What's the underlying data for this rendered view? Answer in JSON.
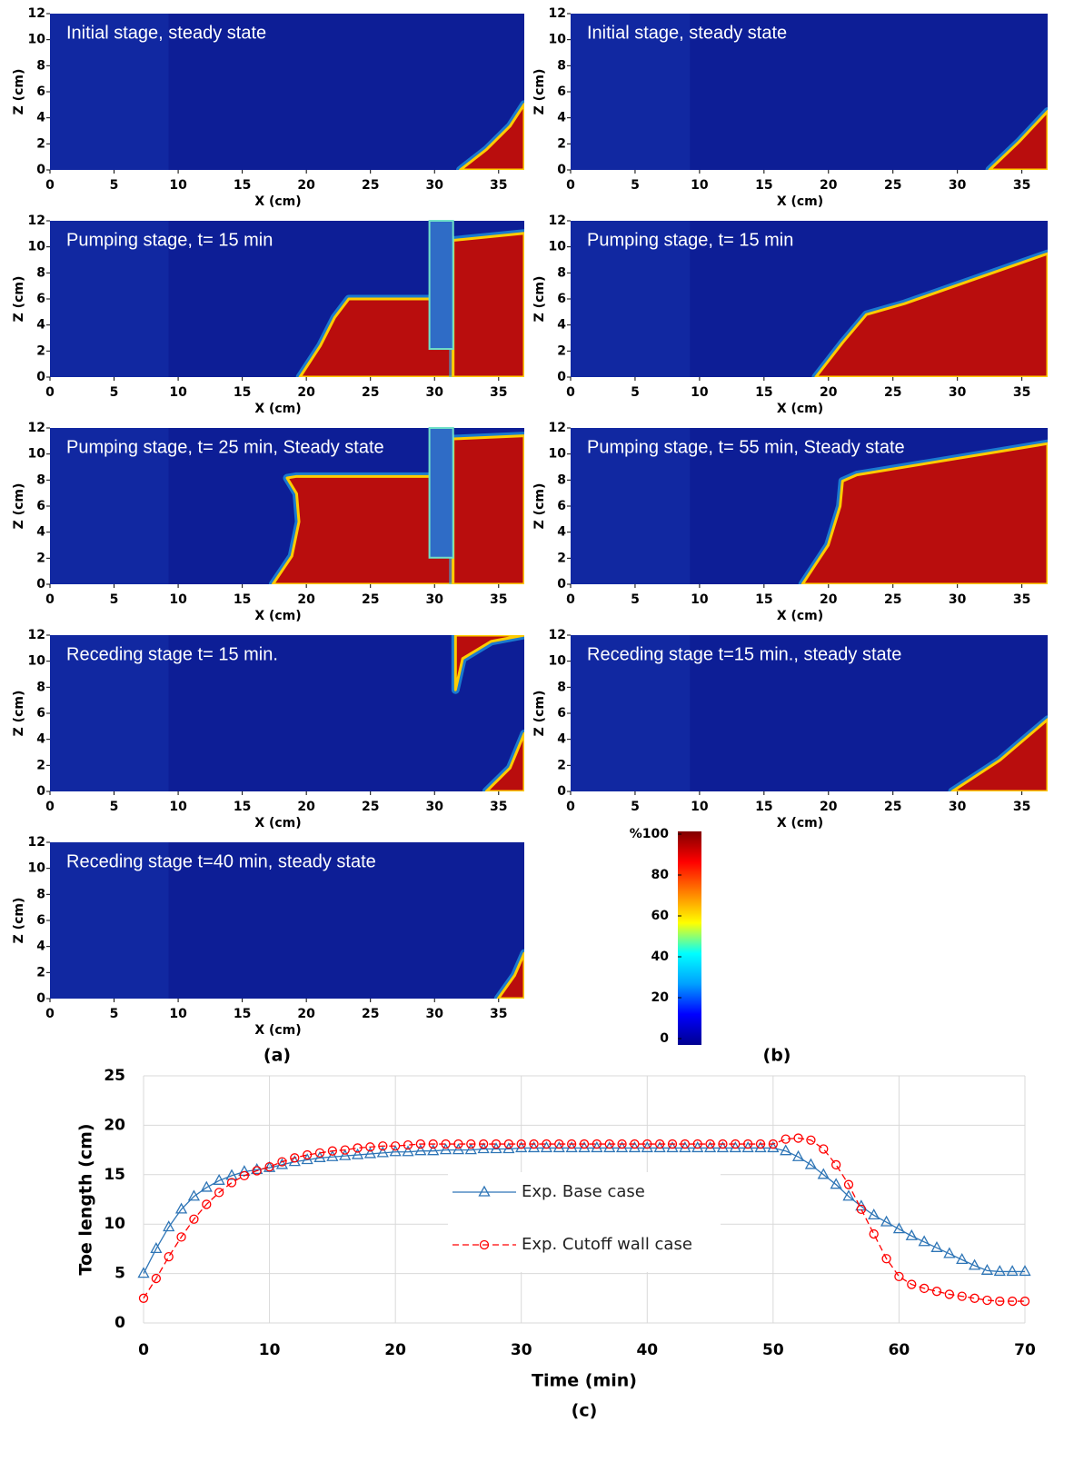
{
  "captions": [
    "(a)",
    "(b)"
  ],
  "chart_data": [
    {
      "type": "field",
      "text": "Initial stage, steady state",
      "xlabel": "X (cm)",
      "ylabel": "Z (cm)",
      "xlim": [
        0,
        37
      ],
      "ylim": [
        0,
        12
      ],
      "xticks": [
        0,
        5,
        10,
        15,
        20,
        25,
        30,
        35
      ],
      "yticks": [
        0,
        2,
        4,
        6,
        8,
        10,
        12
      ]
    },
    {
      "type": "field",
      "text": "Initial stage, steady state",
      "xlabel": "X (cm)",
      "ylabel": "Z (cm)",
      "xlim": [
        0,
        37
      ],
      "ylim": [
        0,
        12
      ],
      "xticks": [
        0,
        5,
        10,
        15,
        20,
        25,
        30,
        35
      ],
      "yticks": [
        0,
        2,
        4,
        6,
        8,
        10,
        12
      ]
    },
    {
      "type": "field",
      "text": "Pumping stage, t= 15 min",
      "xlabel": "X (cm)",
      "ylabel": "Z (cm)",
      "xlim": [
        0,
        37
      ],
      "ylim": [
        0,
        12
      ],
      "xticks": [
        0,
        5,
        10,
        15,
        20,
        25,
        30,
        35
      ],
      "yticks": [
        0,
        2,
        4,
        6,
        8,
        10,
        12
      ]
    },
    {
      "type": "field",
      "text": "Pumping stage, t= 15 min",
      "xlabel": "X (cm)",
      "ylabel": "Z (cm)",
      "xlim": [
        0,
        37
      ],
      "ylim": [
        0,
        12
      ],
      "xticks": [
        0,
        5,
        10,
        15,
        20,
        25,
        30,
        35
      ],
      "yticks": [
        0,
        2,
        4,
        6,
        8,
        10,
        12
      ]
    },
    {
      "type": "field",
      "text": "Pumping stage, t= 25 min, Steady state",
      "xlabel": "X (cm)",
      "ylabel": "Z (cm)",
      "xlim": [
        0,
        37
      ],
      "ylim": [
        0,
        12
      ],
      "xticks": [
        0,
        5,
        10,
        15,
        20,
        25,
        30,
        35
      ],
      "yticks": [
        0,
        2,
        4,
        6,
        8,
        10,
        12
      ]
    },
    {
      "type": "field",
      "text": "Pumping stage, t= 55 min, Steady state",
      "xlabel": "X (cm)",
      "ylabel": "Z (cm)",
      "xlim": [
        0,
        37
      ],
      "ylim": [
        0,
        12
      ],
      "xticks": [
        0,
        5,
        10,
        15,
        20,
        25,
        30,
        35
      ],
      "yticks": [
        0,
        2,
        4,
        6,
        8,
        10,
        12
      ]
    },
    {
      "type": "field",
      "text": "Receding stage t= 15 min.",
      "xlabel": "X (cm)",
      "ylabel": "Z (cm)",
      "xlim": [
        0,
        37
      ],
      "ylim": [
        0,
        12
      ],
      "xticks": [
        0,
        5,
        10,
        15,
        20,
        25,
        30,
        35
      ],
      "yticks": [
        0,
        2,
        4,
        6,
        8,
        10,
        12
      ]
    },
    {
      "type": "field",
      "text": "Receding stage t=15 min., steady state",
      "xlabel": "X (cm)",
      "ylabel": "Z (cm)",
      "xlim": [
        0,
        37
      ],
      "ylim": [
        0,
        12
      ],
      "xticks": [
        0,
        5,
        10,
        15,
        20,
        25,
        30,
        35
      ],
      "yticks": [
        0,
        2,
        4,
        6,
        8,
        10,
        12
      ]
    },
    {
      "type": "field",
      "text": "Receding stage t=40 min, steady state",
      "xlabel": "X (cm)",
      "ylabel": "Z (cm)",
      "xlim": [
        0,
        37
      ],
      "ylim": [
        0,
        12
      ],
      "xticks": [
        0,
        5,
        10,
        15,
        20,
        25,
        30,
        35
      ],
      "yticks": [
        0,
        2,
        4,
        6,
        8,
        10,
        12
      ]
    },
    {
      "type": "colorbar",
      "lim": [
        0,
        100
      ],
      "ticks": [
        0,
        20,
        40,
        60,
        80,
        {
          "value": 100,
          "label": "%100"
        }
      ],
      "colors": [
        "#00008f",
        "#0000ff",
        "#00a0ff",
        "#00ffff",
        "#ffff00",
        "#ff8000",
        "#ff0000",
        "#800000"
      ]
    },
    {
      "type": "line",
      "xlabel": "Time (min)",
      "ylabel": "Toe length (cm)",
      "caption": "(c)",
      "xlim": [
        0,
        70
      ],
      "ylim": [
        0,
        25
      ],
      "xticks": [
        0,
        10,
        20,
        30,
        40,
        50,
        60,
        70
      ],
      "yticks": [
        0,
        5,
        10,
        15,
        20,
        25
      ],
      "grid": true,
      "legend": "center",
      "x": [
        0,
        1,
        2,
        3,
        4,
        5,
        6,
        7,
        8,
        9,
        10,
        11,
        12,
        13,
        14,
        15,
        16,
        17,
        18,
        19,
        20,
        21,
        22,
        23,
        24,
        25,
        26,
        27,
        28,
        29,
        30,
        31,
        32,
        33,
        34,
        35,
        36,
        37,
        38,
        39,
        40,
        41,
        42,
        43,
        44,
        45,
        46,
        47,
        48,
        49,
        50,
        51,
        52,
        53,
        54,
        55,
        56,
        57,
        58,
        59,
        60,
        61,
        62,
        63,
        64,
        65,
        66,
        67,
        68,
        69,
        70
      ],
      "series": [
        {
          "name": "Exp. Base case",
          "color": "#2e75b6",
          "marker": "triangle",
          "dashed": false,
          "values": [
            5,
            7.5,
            9.7,
            11.5,
            12.8,
            13.7,
            14.4,
            14.9,
            15.3,
            15.5,
            15.7,
            16.0,
            16.3,
            16.5,
            16.7,
            16.8,
            16.9,
            17.0,
            17.1,
            17.2,
            17.3,
            17.3,
            17.4,
            17.4,
            17.5,
            17.5,
            17.5,
            17.6,
            17.6,
            17.6,
            17.7,
            17.7,
            17.7,
            17.7,
            17.7,
            17.7,
            17.7,
            17.7,
            17.7,
            17.7,
            17.7,
            17.7,
            17.7,
            17.7,
            17.7,
            17.7,
            17.7,
            17.7,
            17.7,
            17.7,
            17.7,
            17.4,
            16.8,
            16.0,
            15.0,
            14.0,
            12.8,
            11.8,
            10.9,
            10.2,
            9.5,
            8.8,
            8.2,
            7.6,
            7.0,
            6.4,
            5.8,
            5.3,
            5.2,
            5.2,
            5.2
          ]
        },
        {
          "name": "Exp. Cutoff wall case",
          "color": "#ff0000",
          "marker": "circle",
          "dashed": true,
          "values": [
            2.5,
            4.5,
            6.7,
            8.7,
            10.5,
            12.0,
            13.2,
            14.2,
            14.9,
            15.4,
            15.8,
            16.3,
            16.7,
            17.0,
            17.2,
            17.4,
            17.5,
            17.7,
            17.8,
            17.9,
            17.9,
            18.0,
            18.1,
            18.1,
            18.1,
            18.1,
            18.1,
            18.1,
            18.1,
            18.1,
            18.1,
            18.1,
            18.1,
            18.1,
            18.1,
            18.1,
            18.1,
            18.1,
            18.1,
            18.1,
            18.1,
            18.1,
            18.1,
            18.1,
            18.1,
            18.1,
            18.1,
            18.1,
            18.1,
            18.1,
            18.1,
            18.6,
            18.7,
            18.5,
            17.6,
            16.0,
            14.0,
            11.5,
            9.0,
            6.5,
            4.7,
            3.9,
            3.5,
            3.2,
            2.9,
            2.7,
            2.5,
            2.3,
            2.2,
            2.2,
            2.2
          ]
        }
      ]
    }
  ]
}
